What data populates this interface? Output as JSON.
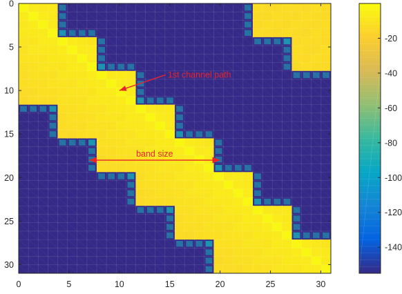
{
  "chart_data": {
    "type": "heatmap",
    "title": "",
    "xlabel": "",
    "ylabel": "",
    "x_range": [
      0,
      31
    ],
    "y_range": [
      0,
      31
    ],
    "y_reversed": true,
    "x_ticks": [
      0,
      5,
      10,
      15,
      20,
      25,
      30
    ],
    "y_ticks": [
      0,
      5,
      10,
      15,
      20,
      25,
      30
    ],
    "colorbar": {
      "range": [
        -155,
        0
      ],
      "ticks": [
        -20,
        -40,
        -60,
        -80,
        -100,
        -120,
        -140
      ],
      "colormap": "parula",
      "colors": [
        "#352a87",
        "#0363e1",
        "#1485d4",
        "#06a7c6",
        "#38b99e",
        "#92bf73",
        "#d9ba56",
        "#fcce2e",
        "#f9fb0e"
      ]
    },
    "matrix": {
      "band_low_value": -155,
      "band_value_min": -13,
      "band_value_max": -6,
      "diagonal_peak_value": -2,
      "band_rows": [
        {
          "rows": [
            0,
            3
          ],
          "lower_edge": 0,
          "upper_edge": 3
        },
        {
          "rows": [
            4,
            7
          ],
          "lower_edge": 0,
          "upper_edge": 7
        },
        {
          "rows": [
            8,
            11
          ],
          "lower_edge": 0,
          "upper_edge": 11
        },
        {
          "rows": [
            12,
            15
          ],
          "lower_edge": 4,
          "upper_edge": 15
        },
        {
          "rows": [
            16,
            19
          ],
          "lower_edge": 8,
          "upper_edge": 19
        },
        {
          "rows": [
            20,
            23
          ],
          "lower_edge": 12,
          "upper_edge": 23
        },
        {
          "rows": [
            24,
            27
          ],
          "lower_edge": 16,
          "upper_edge": 27
        },
        {
          "rows": [
            28,
            31
          ],
          "lower_edge": 20,
          "upper_edge": 31
        }
      ],
      "corner_block": {
        "rows": [
          0,
          7
        ],
        "cols": [
          24,
          31
        ],
        "row_thresholds": [
          {
            "rows": [
              0,
              3
            ],
            "from_col": 24
          },
          {
            "rows": [
              4,
              7
            ],
            "from_col": 28
          }
        ]
      }
    },
    "annotations": [
      {
        "text": "1st channel path",
        "arrow_to": [
          10,
          10
        ]
      },
      {
        "text": "band size",
        "double_arrow": [
          [
            7,
            18
          ],
          [
            20,
            18
          ]
        ]
      }
    ]
  }
}
